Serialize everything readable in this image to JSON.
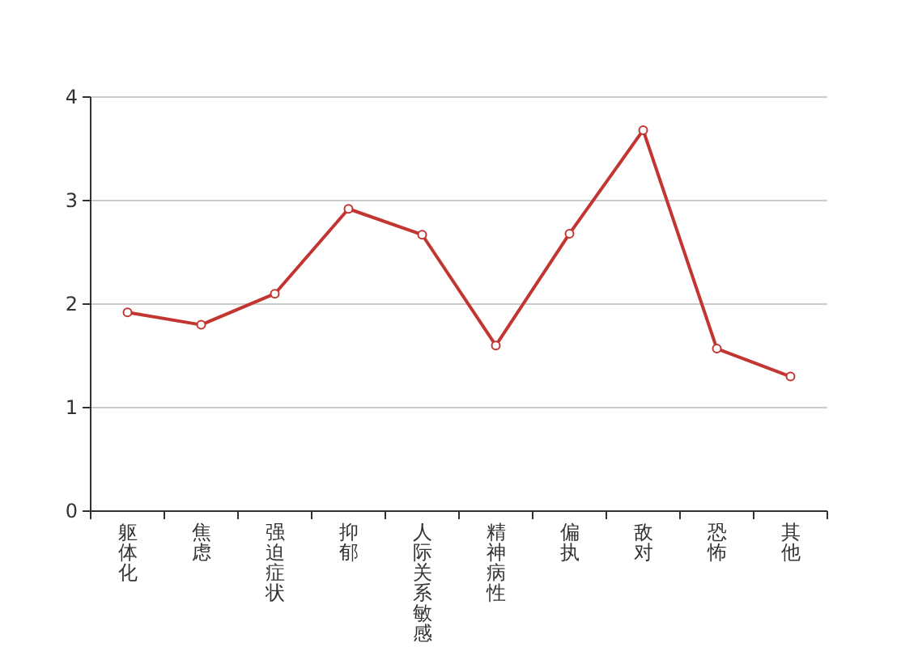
{
  "chart_data": {
    "type": "line",
    "categories": [
      "躯体化",
      "焦虑",
      "强迫症状",
      "抑郁",
      "人际关系敏感",
      "精神病性",
      "偏执",
      "敌对",
      "恐怖",
      "其他"
    ],
    "series": [
      {
        "color": "#c23531",
        "values": [
          1.92,
          1.8,
          2.1,
          2.92,
          2.67,
          1.6,
          2.68,
          3.68,
          1.57,
          1.3
        ]
      }
    ],
    "ylim": [
      0,
      4
    ],
    "yticks": [
      0,
      1,
      2,
      3,
      4
    ],
    "grid": "y",
    "marker": "circle",
    "line_style": "solid"
  }
}
